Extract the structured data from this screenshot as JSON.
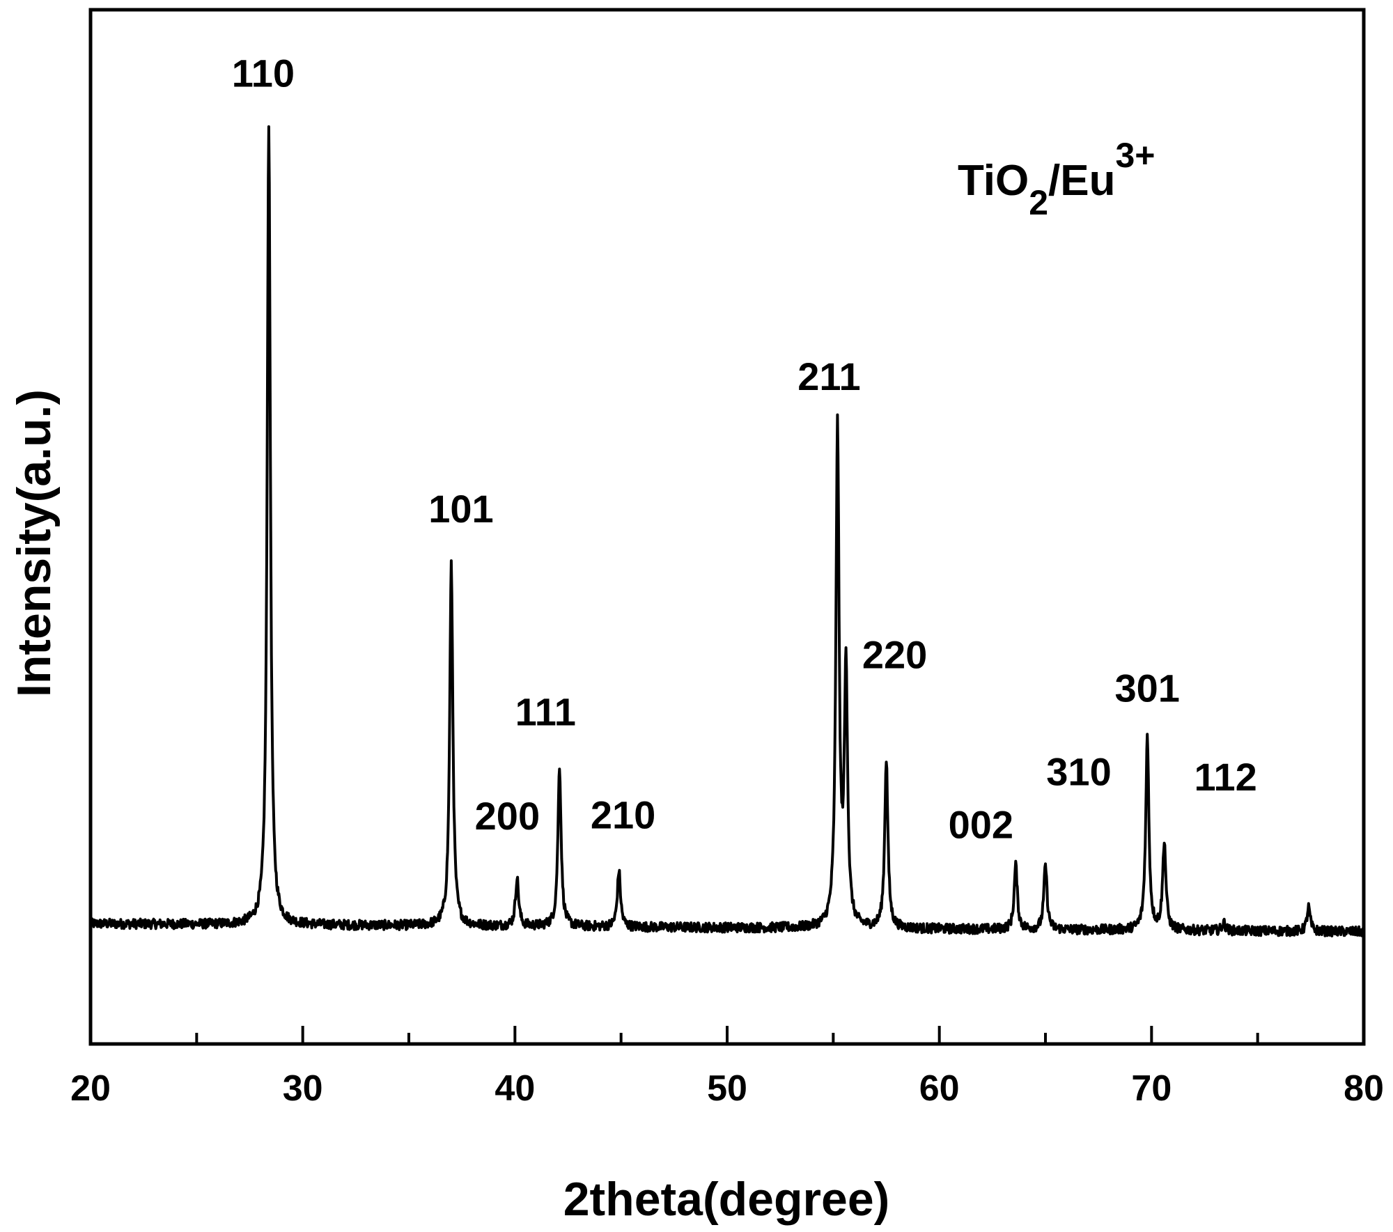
{
  "chart_data": {
    "type": "line",
    "xlabel": "2theta(degree)",
    "ylabel": "Intensity(a.u.)",
    "xlim": [
      20,
      80
    ],
    "ylim": [
      -0.14,
      1.15
    ],
    "x_ticks": [
      "20",
      "30",
      "40",
      "50",
      "60",
      "70",
      "80"
    ],
    "y_ticks_labeled": false,
    "grid": false,
    "annotation": {
      "text": "TiO",
      "sub": "2",
      "mid": "/Eu",
      "sup": "3+",
      "position": "top-right"
    },
    "color": "#000000",
    "peaks": [
      {
        "x": 28.4,
        "y": 1.0,
        "label": "110"
      },
      {
        "x": 37.0,
        "y": 0.45,
        "label": "101"
      },
      {
        "x": 40.1,
        "y": 0.06,
        "label": "200"
      },
      {
        "x": 42.1,
        "y": 0.2,
        "label": "111"
      },
      {
        "x": 44.9,
        "y": 0.07,
        "label": "210"
      },
      {
        "x": 55.2,
        "y": 0.62,
        "label": "211"
      },
      {
        "x": 55.6,
        "y": 0.32,
        "label": "220"
      },
      {
        "x": 57.5,
        "y": 0.21,
        "label": ""
      },
      {
        "x": 63.6,
        "y": 0.08,
        "label": "002"
      },
      {
        "x": 65.0,
        "y": 0.08,
        "label": "310"
      },
      {
        "x": 69.8,
        "y": 0.24,
        "label": "301"
      },
      {
        "x": 70.6,
        "y": 0.11,
        "label": "112"
      },
      {
        "x": 73.4,
        "y": 0.01,
        "label": ""
      },
      {
        "x": 77.4,
        "y": 0.03,
        "label": ""
      }
    ]
  }
}
